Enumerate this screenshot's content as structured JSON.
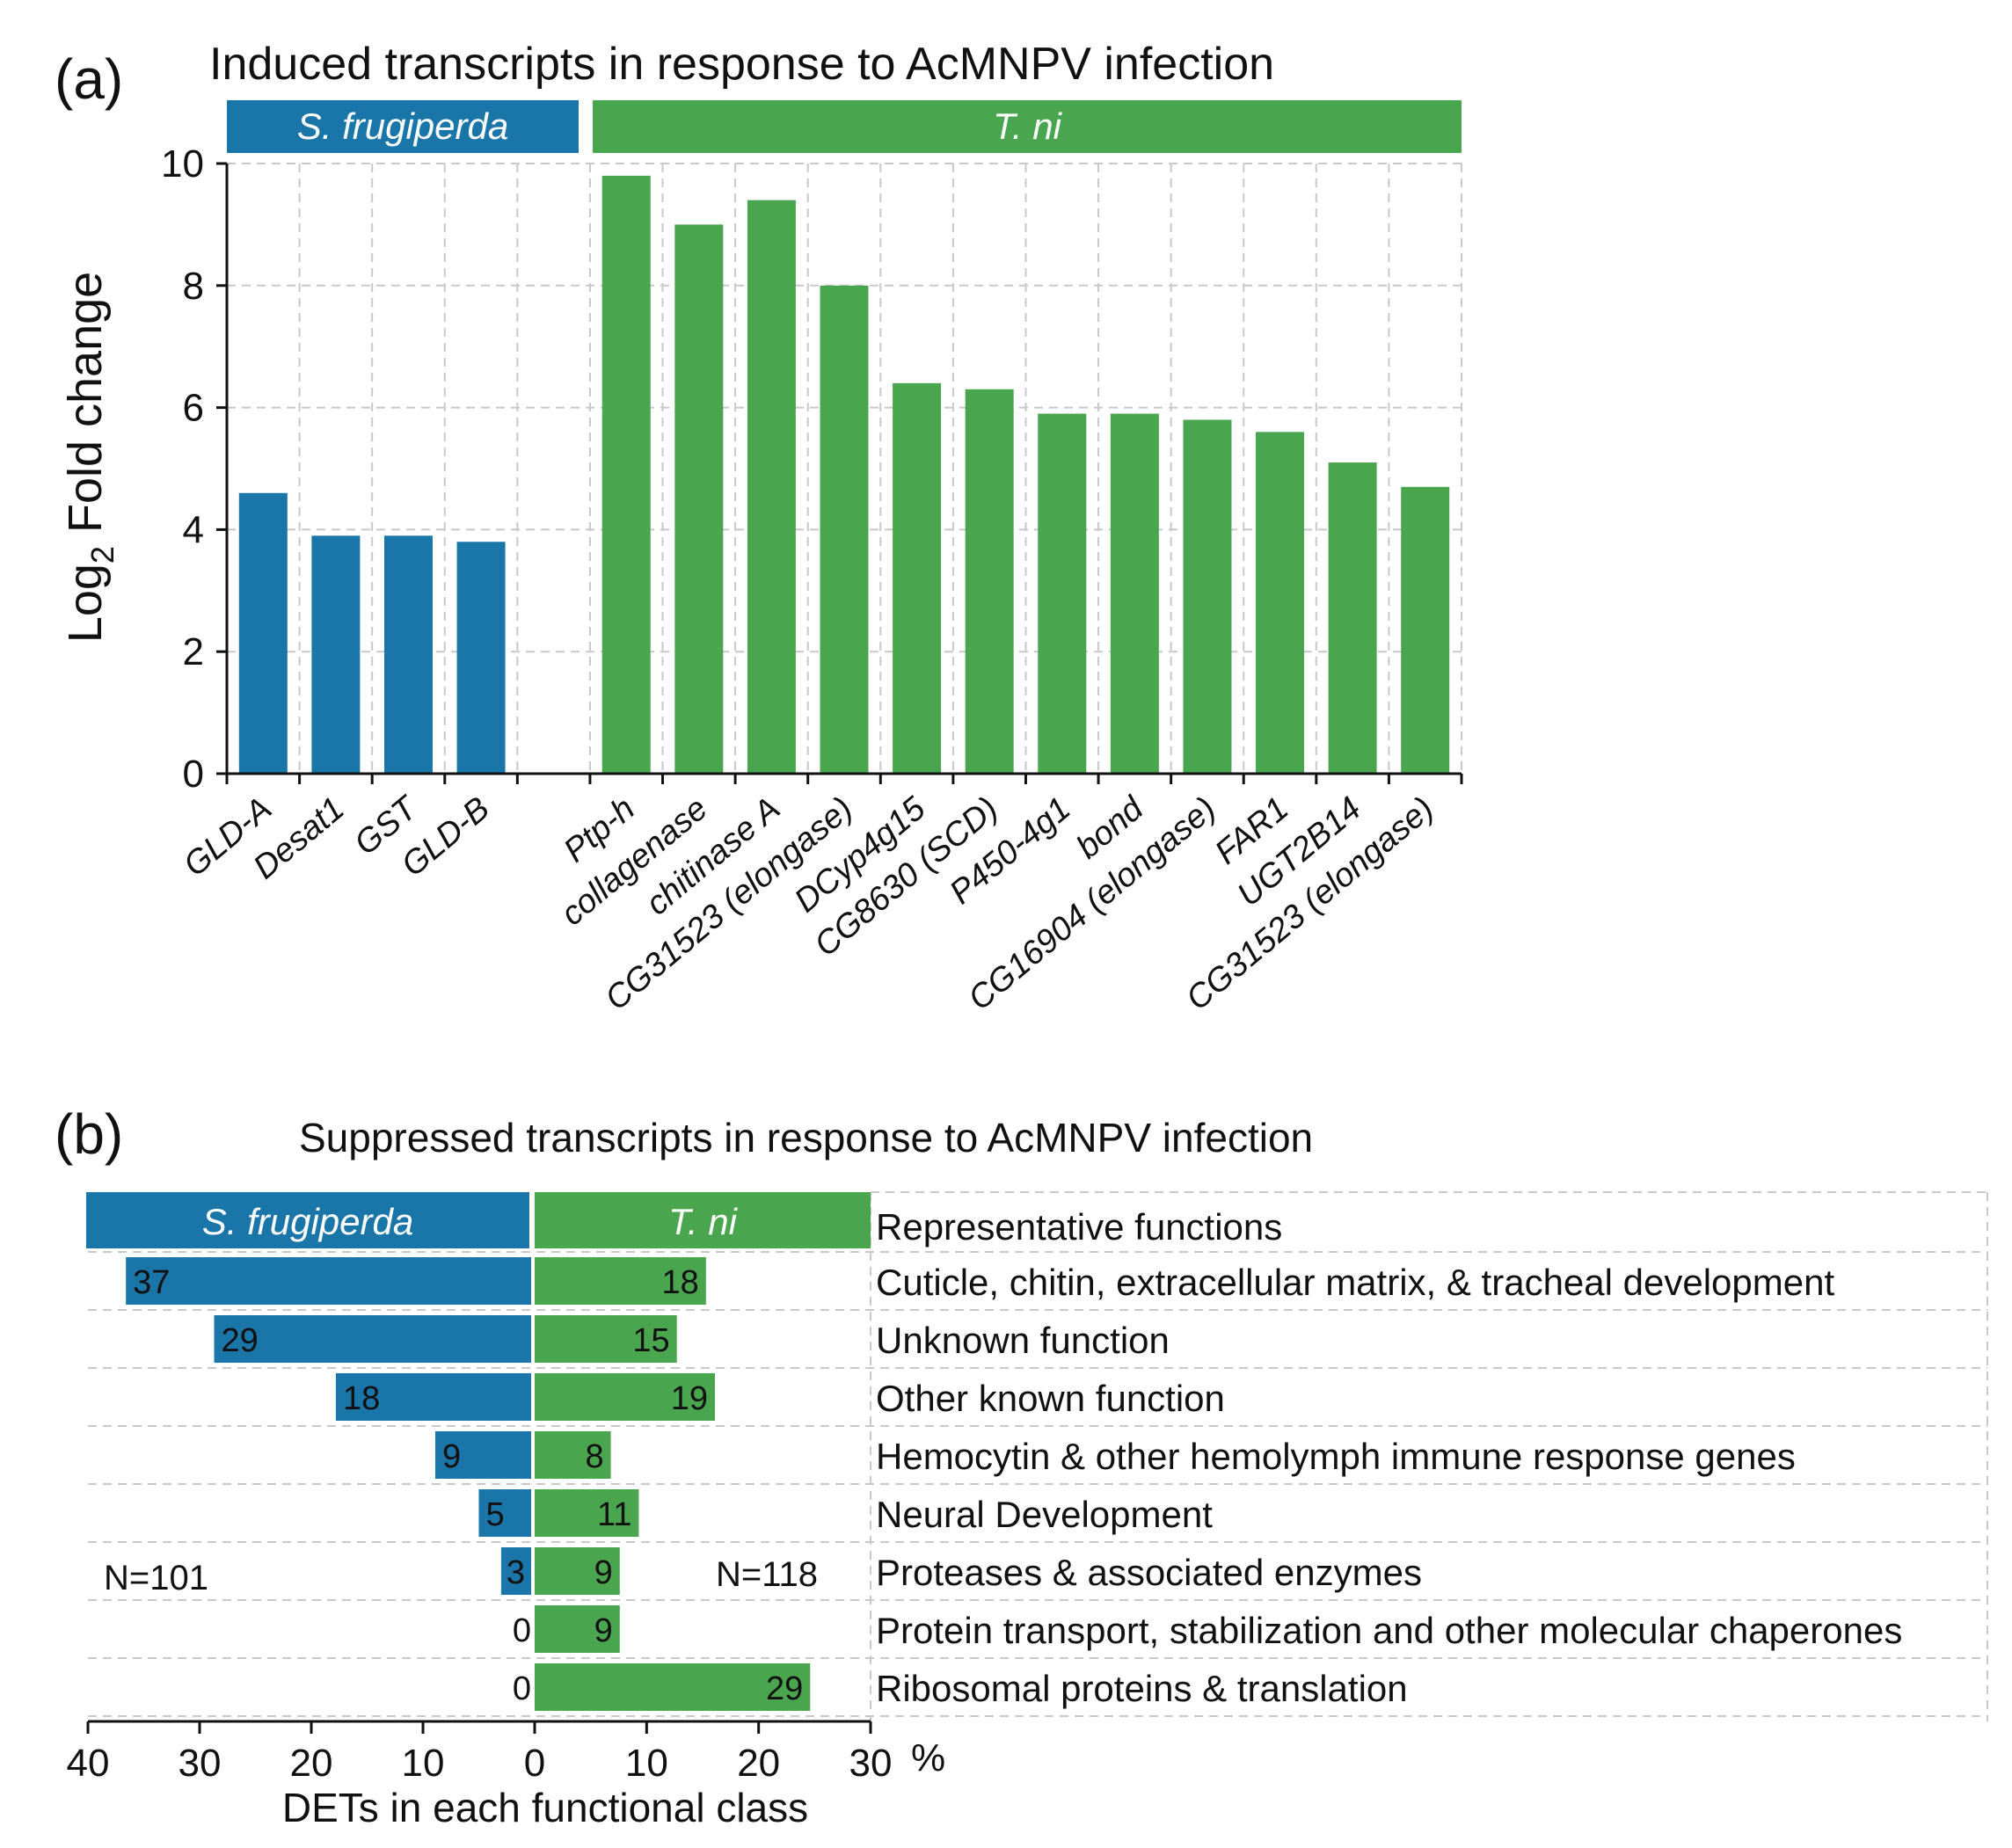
{
  "chart_data": [
    {
      "type": "bar",
      "panel_label": "(a)",
      "title": "Induced transcripts in response to AcMNPV infection",
      "ylabel_main": "Log",
      "ylabel_sub": "2",
      "ylabel_rest": " Fold change",
      "ylim": [
        0,
        10
      ],
      "yticks": [
        "0",
        "2",
        "4",
        "6",
        "8",
        "10"
      ],
      "grid": true,
      "groups": [
        {
          "name": "S. frugiperda",
          "color": "#1a75a8",
          "categories": [
            "GLD-A",
            "Desat1",
            "GST",
            "GLD-B"
          ],
          "values": [
            4.6,
            3.9,
            3.9,
            3.8
          ]
        },
        {
          "name": "T. ni",
          "color": "#4aa54f",
          "categories": [
            "Ptp-h",
            "collagenase",
            "chitinase A",
            "CG31523 (elongase)",
            "DCyp4g15",
            "CG8630 (SCD)",
            "P450-4g1",
            "bond",
            "CG16904 (elongase)",
            "FAR1",
            "UGT2B14",
            "CG31523 (elongase)"
          ],
          "values": [
            9.8,
            9.0,
            9.4,
            8.0,
            6.4,
            6.3,
            5.9,
            5.9,
            5.8,
            5.6,
            5.1,
            4.7
          ]
        }
      ]
    },
    {
      "type": "bar",
      "orientation": "horizontal-diverging",
      "panel_label": "(b)",
      "title": "Suppressed transcripts in response to AcMNPV infection",
      "xlabel": "DETs in each functional class",
      "x_unit": "%",
      "xticks_left": [
        "40",
        "30",
        "20",
        "10",
        "0"
      ],
      "xticks_right": [
        "10",
        "20",
        "30"
      ],
      "xlim_left": [
        0,
        40
      ],
      "xlim_right": [
        0,
        30
      ],
      "header_left": "S. frugiperda",
      "header_right": "T. ni",
      "functions_header": "Representative functions",
      "left_total": "N=101",
      "right_total": "N=118",
      "categories": [
        "Cuticle, chitin, extracellular matrix, & tracheal development",
        "Unknown function",
        "Other known function",
        "Hemocytin & other hemolymph immune response genes",
        "Neural Development",
        "Proteases & associated enzymes",
        "Protein transport, stabilization and other molecular chaperones",
        "Ribosomal proteins & translation"
      ],
      "series": [
        {
          "name": "S. frugiperda",
          "color": "#1a75a8",
          "counts": [
            "37",
            "29",
            "18",
            "9",
            "5",
            "3",
            "0",
            "0"
          ],
          "percent": [
            36.6,
            28.7,
            17.8,
            8.9,
            5.0,
            3.0,
            0,
            0
          ]
        },
        {
          "name": "T. ni",
          "color": "#4aa54f",
          "counts": [
            "18",
            "15",
            "19",
            "8",
            "11",
            "9",
            "9",
            "29"
          ],
          "percent": [
            15.3,
            12.7,
            16.1,
            6.8,
            9.3,
            7.6,
            7.6,
            24.6
          ]
        }
      ]
    }
  ]
}
